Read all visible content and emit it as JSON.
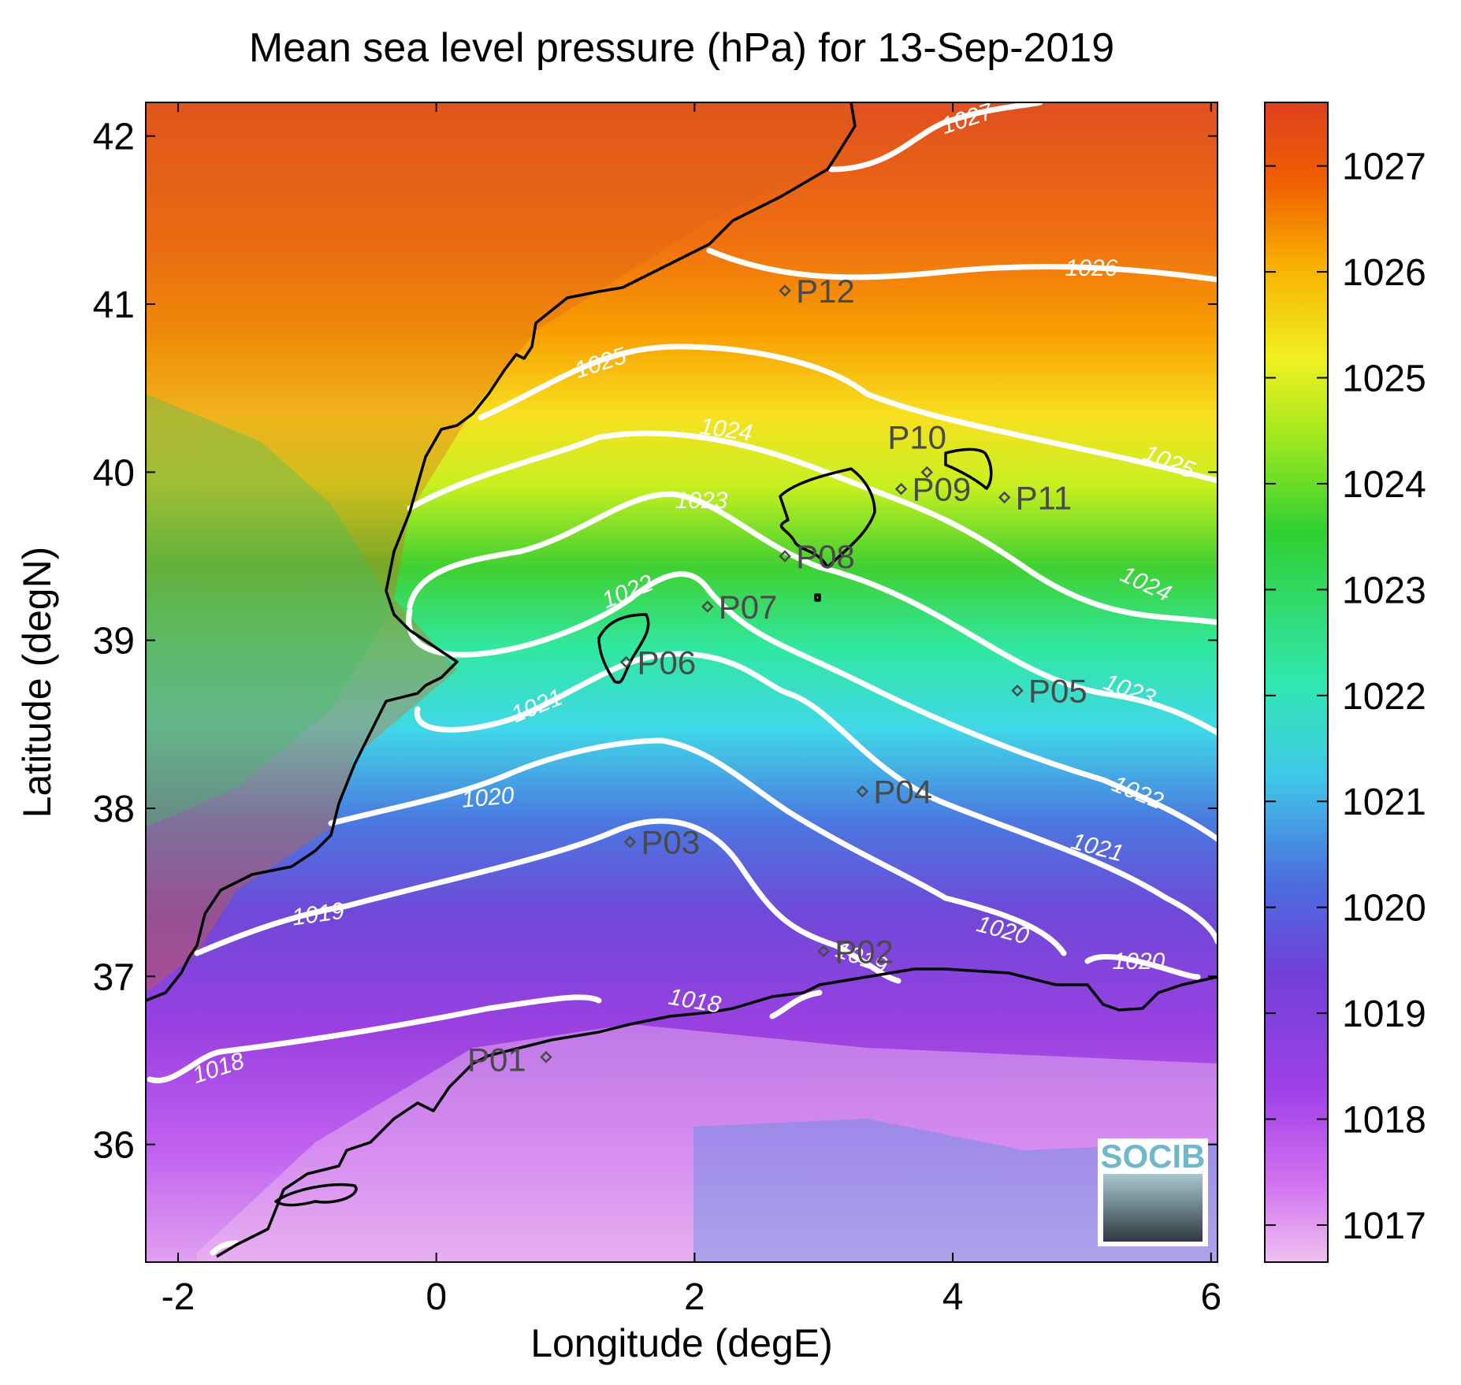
{
  "title": "Mean sea level pressure (hPa) for 13-Sep-2019",
  "xlabel": "Longitude (degE)",
  "ylabel": "Latitude (degN)",
  "x_ticks": [
    "-2",
    "0",
    "2",
    "4",
    "6"
  ],
  "y_ticks": [
    "36",
    "37",
    "38",
    "39",
    "40",
    "41",
    "42"
  ],
  "colorbar": {
    "ticks": [
      "1017",
      "1018",
      "1019",
      "1020",
      "1021",
      "1022",
      "1023",
      "1024",
      "1025",
      "1026",
      "1027"
    ],
    "range": [
      1016.65,
      1027.6
    ],
    "colors": [
      "#f0b8f0",
      "#c040f0",
      "#8040d8",
      "#4070e0",
      "#40d8e8",
      "#30e8a0",
      "#30d030",
      "#a0e820",
      "#f0f020",
      "#f8a000",
      "#f05000",
      "#e04020"
    ]
  },
  "contour_labels": [
    {
      "text": "1027"
    },
    {
      "text": "1026"
    },
    {
      "text": "1025"
    },
    {
      "text": "1025"
    },
    {
      "text": "1024"
    },
    {
      "text": "1024"
    },
    {
      "text": "1023"
    },
    {
      "text": "1023"
    },
    {
      "text": "1022"
    },
    {
      "text": "1022"
    },
    {
      "text": "1021"
    },
    {
      "text": "1021"
    },
    {
      "text": "1020"
    },
    {
      "text": "1020"
    },
    {
      "text": "1020"
    },
    {
      "text": "1019"
    },
    {
      "text": "1019"
    },
    {
      "text": "1018"
    },
    {
      "text": "1018"
    }
  ],
  "stations": [
    {
      "name": "P01",
      "lon": 0.85,
      "lat": 36.52
    },
    {
      "name": "P02",
      "lon": 3.0,
      "lat": 37.15
    },
    {
      "name": "P03",
      "lon": 1.5,
      "lat": 37.8
    },
    {
      "name": "P04",
      "lon": 3.3,
      "lat": 38.1
    },
    {
      "name": "P05",
      "lon": 4.5,
      "lat": 38.7
    },
    {
      "name": "P06",
      "lon": 1.47,
      "lat": 38.87
    },
    {
      "name": "P07",
      "lon": 2.1,
      "lat": 39.2
    },
    {
      "name": "P08",
      "lon": 2.7,
      "lat": 39.5
    },
    {
      "name": "P09",
      "lon": 3.6,
      "lat": 39.9
    },
    {
      "name": "P10",
      "lon": 3.8,
      "lat": 40.0
    },
    {
      "name": "P11",
      "lon": 4.4,
      "lat": 39.85
    },
    {
      "name": "P12",
      "lon": 2.7,
      "lat": 41.08
    }
  ],
  "map_extent": {
    "lon": [
      -2.25,
      6.05
    ],
    "lat": [
      35.3,
      42.2
    ]
  },
  "logo": {
    "text": "SOCIB"
  }
}
